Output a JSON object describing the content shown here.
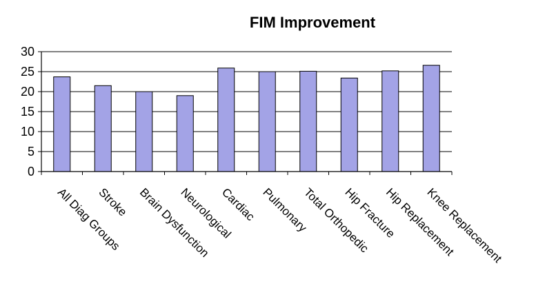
{
  "chart_data": {
    "type": "bar",
    "title": "FIM Improvement",
    "xlabel": "",
    "ylabel": "",
    "categories": [
      "All Diag Groups",
      "Stroke",
      "Brain Dysfunction",
      "Neurological",
      "Cardiac",
      "Pulmonary",
      "Total Orthopedic",
      "Hip Fracture",
      "Hip Replacement",
      "Knee Replacement"
    ],
    "values": [
      23.7,
      21.5,
      20.0,
      19.0,
      25.9,
      25.0,
      25.1,
      23.4,
      25.2,
      26.6
    ],
    "ylim": [
      0,
      30
    ],
    "yticks": [
      0,
      5,
      10,
      15,
      20,
      25,
      30
    ],
    "grid": true,
    "legend": "none",
    "colors": {
      "bar_fill": "#a3a3e6",
      "bar_stroke": "#000000",
      "grid": "#000000",
      "axis": "#000000",
      "text": "#000000"
    }
  }
}
